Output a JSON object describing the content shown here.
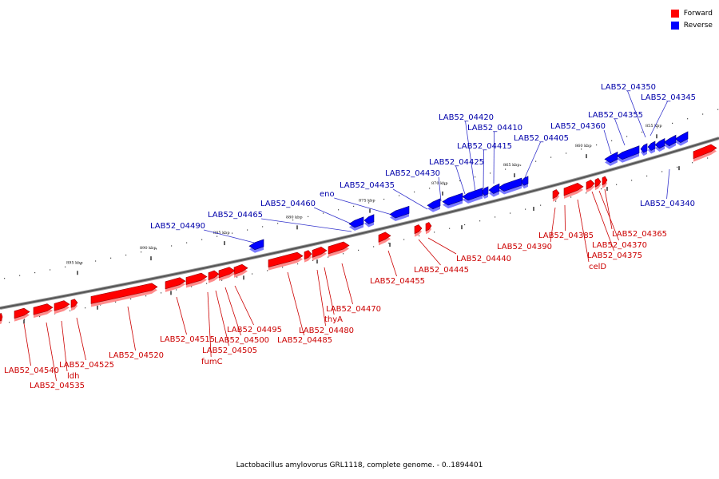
{
  "legend": [
    {
      "label": "Forward",
      "color": "#ff0000"
    },
    {
      "label": "Reverse",
      "color": "#0000ff"
    }
  ],
  "footer": "Lactobacillus amylovorus GRL1118, complete genome. - 0..1894401",
  "ticks": [
    "855 kbp",
    "860 kbp",
    "865 kbp",
    "870 kbp",
    "875 kbp",
    "880 kbp",
    "885 kbp",
    "890 kbp",
    "895 kbp"
  ],
  "reverse_genes": [
    "LAB52_04345",
    "LAB52_04350",
    "LAB52_04355",
    "LAB52_04360",
    "LAB52_04405",
    "LAB52_04410",
    "LAB52_04415",
    "LAB52_04420",
    "LAB52_04425",
    "LAB52_04430",
    "LAB52_04435",
    "eno",
    "LAB52_04460",
    "LAB52_04465",
    "LAB52_04490",
    "LAB52_04340"
  ],
  "forward_genes": [
    "LAB52_04365",
    "LAB52_04370",
    "LAB52_04375",
    "celD",
    "LAB52_04385",
    "LAB52_04390",
    "LAB52_04440",
    "LAB52_04445",
    "LAB52_04455",
    "LAB52_04470",
    "thyA",
    "LAB52_04480",
    "LAB52_04485",
    "LAB52_04495",
    "LAB52_04500",
    "LAB52_04505",
    "fumC",
    "LAB52_04515",
    "LAB52_04520",
    "LAB52_04525",
    "ldh",
    "LAB52_04535",
    "LAB52_04540"
  ]
}
